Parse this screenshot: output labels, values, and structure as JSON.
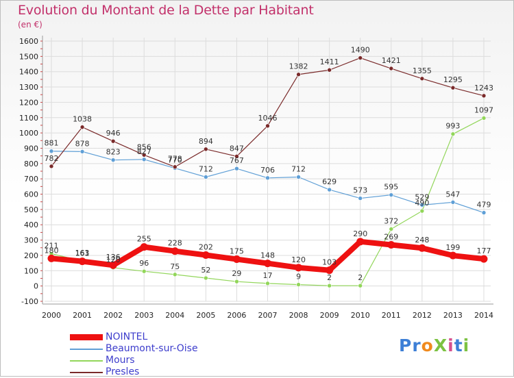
{
  "title": "Evolution du Montant de la Dette par Habitant",
  "subtitle": "(en €)",
  "logo": {
    "text": "ProXiti",
    "colors": [
      "#3d7fd6",
      "#3d7fd6",
      "#f08a1e",
      "#7cc242",
      "#d64f8e",
      "#3d7fd6",
      "#7cc242"
    ]
  },
  "chart_data": {
    "type": "line",
    "title": "Evolution du Montant de la Dette par Habitant",
    "subtitle": "(en €)",
    "ylim": [
      -100,
      1600
    ],
    "yticks": [
      -100,
      0,
      100,
      200,
      300,
      400,
      500,
      600,
      700,
      800,
      900,
      1000,
      1100,
      1200,
      1300,
      1400,
      1500,
      1600
    ],
    "x": [
      "2000",
      "2001",
      "2002",
      "2003",
      "2004",
      "2005",
      "2006",
      "2007",
      "2008",
      "2009",
      "2010",
      "2011",
      "2012",
      "2013",
      "2014"
    ],
    "grid": true,
    "legend_position": "bottom-left",
    "series": [
      {
        "name": "NOINTEL",
        "color": "#ee1111",
        "values": [
          180,
          161,
          136,
          255,
          228,
          202,
          175,
          148,
          120,
          103,
          290,
          269,
          248,
          199,
          177
        ]
      },
      {
        "name": "Beaumont-sur-Oise",
        "color": "#5f9fd6",
        "values": [
          881,
          878,
          823,
          827,
          770,
          712,
          767,
          706,
          712,
          629,
          573,
          595,
          529,
          547,
          479
        ]
      },
      {
        "name": "Mours",
        "color": "#92d65a",
        "values": [
          211,
          163,
          120,
          96,
          75,
          52,
          29,
          17,
          9,
          2,
          2,
          372,
          490,
          993,
          1097
        ]
      },
      {
        "name": "Presles",
        "color": "#7a2a2a",
        "values": [
          782,
          1038,
          946,
          856,
          778,
          894,
          847,
          1046,
          1382,
          1411,
          1490,
          1421,
          1355,
          1295,
          1243
        ]
      }
    ]
  }
}
